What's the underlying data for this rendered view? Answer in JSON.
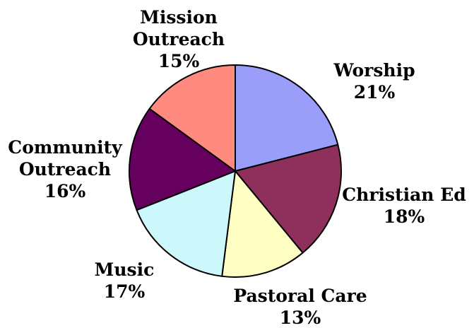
{
  "chart_data": {
    "type": "pie",
    "title": "",
    "slices": [
      {
        "label_lines": [
          "Worship"
        ],
        "value": 21,
        "value_label": "21%",
        "color": "#9a9ef8"
      },
      {
        "label_lines": [
          "Christian Ed"
        ],
        "value": 18,
        "value_label": "18%",
        "color": "#8e2f5c"
      },
      {
        "label_lines": [
          "Pastoral Care"
        ],
        "value": 13,
        "value_label": "13%",
        "color": "#ffffc4"
      },
      {
        "label_lines": [
          "Music"
        ],
        "value": 17,
        "value_label": "17%",
        "color": "#ccf8fc"
      },
      {
        "label_lines": [
          "Community",
          "Outreach"
        ],
        "value": 16,
        "value_label": "16%",
        "color": "#66005f"
      },
      {
        "label_lines": [
          "Mission",
          "Outreach"
        ],
        "value": 15,
        "value_label": "15%",
        "color": "#ff8a80"
      }
    ],
    "start": "12 o'clock",
    "direction": "clockwise",
    "legend": "none; labels placed outside each slice"
  }
}
